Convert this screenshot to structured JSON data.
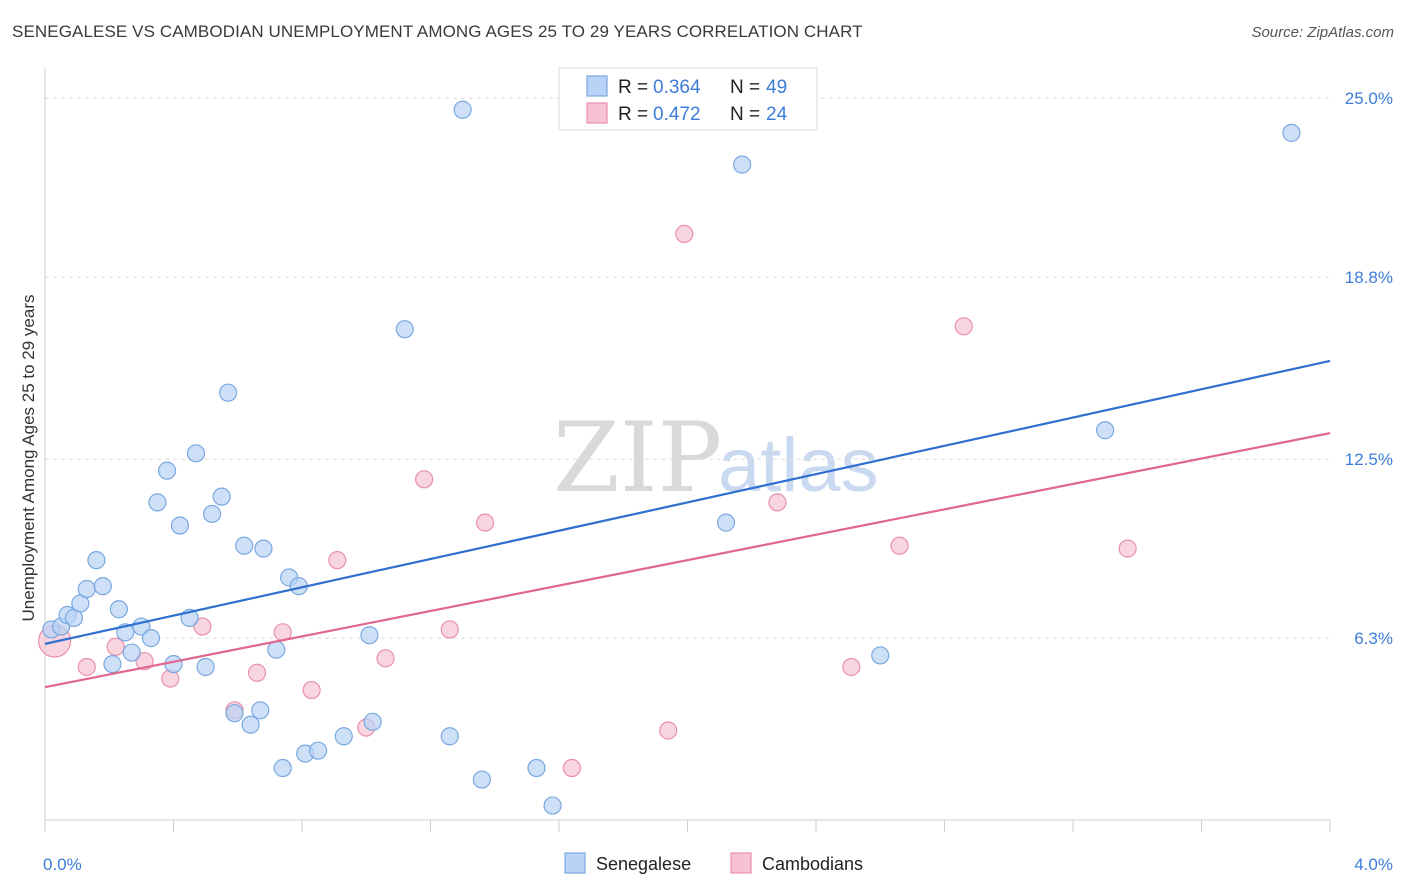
{
  "title": "SENEGALESE VS CAMBODIAN UNEMPLOYMENT AMONG AGES 25 TO 29 YEARS CORRELATION CHART",
  "source": "Source: ZipAtlas.com",
  "watermark": {
    "zip": "ZIP",
    "atlas": "atlas"
  },
  "legend": {
    "rows": [
      {
        "r_label": "R = ",
        "r_value": "0.364",
        "n_label": "N = ",
        "n_value": "49"
      },
      {
        "r_label": "R = ",
        "r_value": "0.472",
        "n_label": "N = ",
        "n_value": "24"
      }
    ]
  },
  "bottom_legend": [
    "Senegalese",
    "Cambodians"
  ],
  "colors": {
    "senegalese_fill": "#b8d3f5",
    "senegalese_stroke": "#7aa8e0",
    "senegalese_line": "#2f6fd0",
    "cambodians_fill": "#f7c3d3",
    "cambodians_stroke": "#e890ad",
    "cambodians_line": "#e0668f",
    "tick_label": "#3b7dd8",
    "grid": "#dcdcdc"
  },
  "chart_data": {
    "type": "scatter",
    "title": "SENEGALESE VS CAMBODIAN UNEMPLOYMENT AMONG AGES 25 TO 29 YEARS CORRELATION CHART",
    "xlabel": "",
    "ylabel": "Unemployment Among Ages 25 to 29 years",
    "xlim": [
      0.0,
      4.0
    ],
    "ylim": [
      0.0,
      25.7
    ],
    "x_tick_labels": [
      "0.0%",
      "4.0%"
    ],
    "y_ticks": [
      6.3,
      12.5,
      18.8,
      25.0
    ],
    "y_tick_labels": [
      "6.3%",
      "12.5%",
      "18.8%",
      "25.0%"
    ],
    "series": [
      {
        "name": "Senegalese",
        "R": 0.364,
        "N": 49,
        "points": [
          [
            0.02,
            6.6
          ],
          [
            0.05,
            6.7
          ],
          [
            0.07,
            7.1
          ],
          [
            0.09,
            7.0
          ],
          [
            0.11,
            7.5
          ],
          [
            0.13,
            8.0
          ],
          [
            0.16,
            9.0
          ],
          [
            0.18,
            8.1
          ],
          [
            0.21,
            5.4
          ],
          [
            0.23,
            7.3
          ],
          [
            0.25,
            6.5
          ],
          [
            0.27,
            5.8
          ],
          [
            0.3,
            6.7
          ],
          [
            0.33,
            6.3
          ],
          [
            0.35,
            11.0
          ],
          [
            0.38,
            12.1
          ],
          [
            0.4,
            5.4
          ],
          [
            0.42,
            10.2
          ],
          [
            0.45,
            7.0
          ],
          [
            0.47,
            12.7
          ],
          [
            0.5,
            5.3
          ],
          [
            0.52,
            10.6
          ],
          [
            0.55,
            11.2
          ],
          [
            0.57,
            14.8
          ],
          [
            0.59,
            3.7
          ],
          [
            0.62,
            9.5
          ],
          [
            0.64,
            3.3
          ],
          [
            0.67,
            3.8
          ],
          [
            0.68,
            9.4
          ],
          [
            0.72,
            5.9
          ],
          [
            0.74,
            1.8
          ],
          [
            0.76,
            8.4
          ],
          [
            0.79,
            8.1
          ],
          [
            0.81,
            2.3
          ],
          [
            0.85,
            2.4
          ],
          [
            0.93,
            2.9
          ],
          [
            1.01,
            6.4
          ],
          [
            1.02,
            3.4
          ],
          [
            1.12,
            17.0
          ],
          [
            1.26,
            2.9
          ],
          [
            1.3,
            24.6
          ],
          [
            1.36,
            1.4
          ],
          [
            1.53,
            1.8
          ],
          [
            1.58,
            0.5
          ],
          [
            2.12,
            10.3
          ],
          [
            2.17,
            22.7
          ],
          [
            2.6,
            5.7
          ],
          [
            3.3,
            13.5
          ],
          [
            3.88,
            23.8
          ]
        ],
        "trend": {
          "x": [
            0.0,
            4.0
          ],
          "y": [
            6.1,
            15.9
          ]
        }
      },
      {
        "name": "Cambodians",
        "R": 0.472,
        "N": 24,
        "points": [
          [
            0.03,
            6.2
          ],
          [
            0.13,
            5.3
          ],
          [
            0.22,
            6.0
          ],
          [
            0.31,
            5.5
          ],
          [
            0.39,
            4.9
          ],
          [
            0.49,
            6.7
          ],
          [
            0.59,
            3.8
          ],
          [
            0.66,
            5.1
          ],
          [
            0.74,
            6.5
          ],
          [
            0.83,
            4.5
          ],
          [
            0.91,
            9.0
          ],
          [
            1.0,
            3.2
          ],
          [
            1.06,
            5.6
          ],
          [
            1.18,
            11.8
          ],
          [
            1.26,
            6.6
          ],
          [
            1.37,
            10.3
          ],
          [
            1.64,
            1.8
          ],
          [
            1.94,
            3.1
          ],
          [
            1.99,
            20.3
          ],
          [
            2.28,
            11.0
          ],
          [
            2.51,
            5.3
          ],
          [
            2.66,
            9.5
          ],
          [
            2.86,
            17.1
          ],
          [
            3.37,
            9.4
          ]
        ],
        "trend": {
          "x": [
            0.0,
            4.0
          ],
          "y": [
            4.6,
            13.4
          ]
        }
      }
    ]
  }
}
